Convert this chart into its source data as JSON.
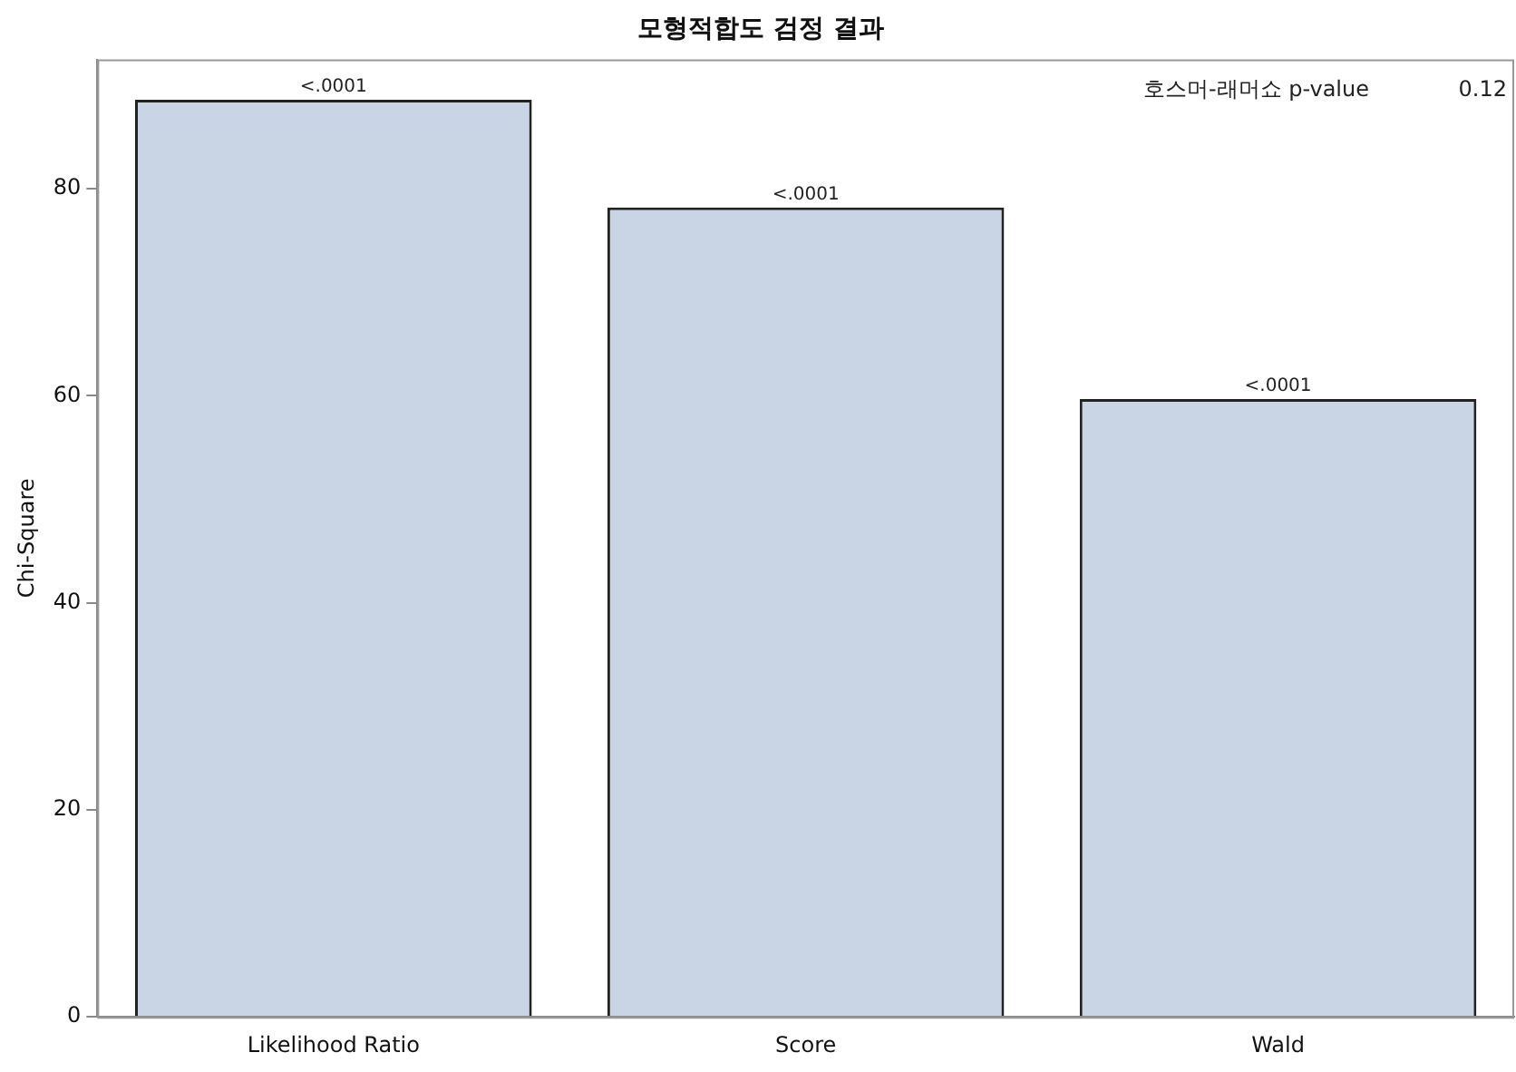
{
  "chart_data": {
    "type": "bar",
    "title": "모형적합도 검정 결과",
    "ylabel": "Chi-Square",
    "categories": [
      "Likelihood Ratio",
      "Score",
      "Wald"
    ],
    "values": [
      88.6,
      78.2,
      59.7
    ],
    "value_labels": [
      "<.0001",
      "<.0001",
      "<.0001"
    ],
    "color": "#c9d5e5",
    "ylim": [
      0,
      92.5
    ],
    "yticks": [
      0,
      20,
      40,
      60,
      80
    ],
    "grid": false,
    "legend": false,
    "annotations": [
      "호스머-래머쇼 p-value",
      "0.12"
    ]
  }
}
